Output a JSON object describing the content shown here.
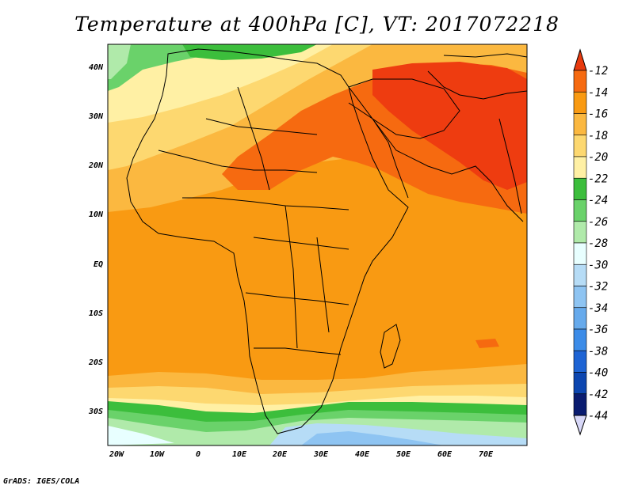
{
  "title": "Temperature at 400hPa [C], VT: 2017072218",
  "credit": "GrADS: IGES/COLA",
  "map": {
    "region": "Africa and Middle East",
    "lon_labels": [
      "20W",
      "10W",
      "0",
      "10E",
      "20E",
      "30E",
      "40E",
      "50E",
      "60E",
      "70E"
    ],
    "lat_labels": [
      "40N",
      "30N",
      "20N",
      "10N",
      "EQ",
      "10S",
      "20S",
      "30S"
    ],
    "lon_range": [
      -22,
      80
    ],
    "lat_range": [
      -37,
      45
    ]
  },
  "colorbar": {
    "labels": [
      "-12",
      "-14",
      "-16",
      "-18",
      "-20",
      "-22",
      "-24",
      "-26",
      "-28",
      "-30",
      "-32",
      "-34",
      "-36",
      "-38",
      "-40",
      "-42",
      "-44"
    ],
    "colors": [
      "#ee3c10",
      "#f66a10",
      "#f99a12",
      "#fbb840",
      "#fdd870",
      "#fff0a4",
      "#3cbe3c",
      "#6ad26a",
      "#b0eaaa",
      "#e8ffff",
      "#b6dcf6",
      "#8ec4f2",
      "#66aaec",
      "#3c8ce8",
      "#1e64d4",
      "#0c46b0",
      "#0a1c70"
    ],
    "top_color": "#e83a0e",
    "bottom_color": "#d8d8f8"
  }
}
